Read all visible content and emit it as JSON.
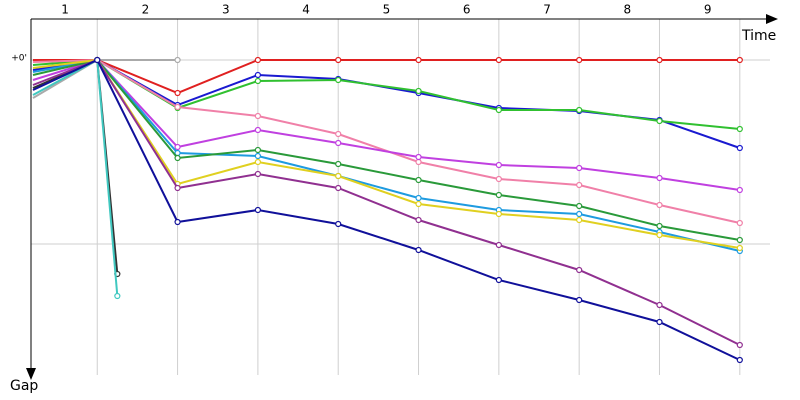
{
  "chart_data": {
    "type": "line",
    "x_label": "Time",
    "y_label": "Gap",
    "laps": [
      "1",
      "2",
      "3",
      "4",
      "5",
      "6",
      "7",
      "8",
      "9"
    ],
    "x": [
      0.2,
      1,
      2,
      3,
      4,
      5,
      6,
      7,
      8,
      9
    ],
    "xlim": [
      0.2,
      9.6
    ],
    "xticks": [
      1,
      2,
      3,
      4,
      5,
      6,
      7,
      8,
      9
    ],
    "ylim": [
      -4.1,
      31.5
    ],
    "yticks": [
      {
        "value": 0,
        "label": "+0'"
      },
      {
        "value": 18.4,
        "label": null
      }
    ],
    "grid": true,
    "series": [
      {
        "color": "#aaaaaa",
        "x": [
          0.2,
          1,
          2
        ],
        "values": [
          3.8,
          0,
          0
        ]
      },
      {
        "color": "#333333",
        "x": [
          0.2,
          1,
          1.25
        ],
        "values": [
          2.8,
          0,
          21.4
        ]
      },
      {
        "color": "#40c8c0",
        "x": [
          0.2,
          1,
          1.25
        ],
        "values": [
          3.5,
          0,
          23.6
        ]
      },
      {
        "color": "#e02020",
        "values": [
          0,
          0,
          3.3,
          0,
          0,
          0,
          0,
          0,
          0,
          0
        ]
      },
      {
        "color": "#1a1ad0",
        "values": [
          1.0,
          0,
          4.5,
          1.5,
          1.9,
          3.3,
          4.8,
          5.1,
          6.0,
          8.8
        ]
      },
      {
        "color": "#30c030",
        "values": [
          0.5,
          0,
          4.8,
          2.1,
          2.0,
          3.1,
          5.0,
          5.0,
          6.1,
          6.9
        ]
      },
      {
        "color": "#f080a8",
        "values": [
          0.2,
          0,
          4.7,
          5.6,
          7.4,
          10.2,
          11.9,
          12.5,
          14.5,
          16.3
        ]
      },
      {
        "color": "#c040e0",
        "values": [
          2.0,
          0,
          8.7,
          7.0,
          8.3,
          9.7,
          10.5,
          10.8,
          11.8,
          13.0
        ]
      },
      {
        "color": "#1e9be0",
        "values": [
          1.2,
          0,
          9.3,
          9.6,
          11.6,
          13.8,
          15.0,
          15.4,
          17.2,
          19.1
        ]
      },
      {
        "color": "#2a9a3a",
        "values": [
          1.5,
          0,
          9.8,
          9.0,
          10.4,
          12.0,
          13.5,
          14.6,
          16.6,
          18.0
        ]
      },
      {
        "color": "#e0d020",
        "values": [
          0.8,
          0,
          12.4,
          10.2,
          11.6,
          14.4,
          15.4,
          16.0,
          17.5,
          18.8
        ]
      },
      {
        "color": "#903090",
        "values": [
          2.5,
          0,
          12.8,
          11.4,
          12.8,
          16.0,
          18.5,
          21.0,
          24.5,
          28.5
        ]
      },
      {
        "color": "#10109a",
        "values": [
          3.0,
          0,
          16.2,
          15.0,
          16.4,
          19.0,
          22.0,
          24.0,
          26.2,
          30.0
        ]
      }
    ]
  }
}
